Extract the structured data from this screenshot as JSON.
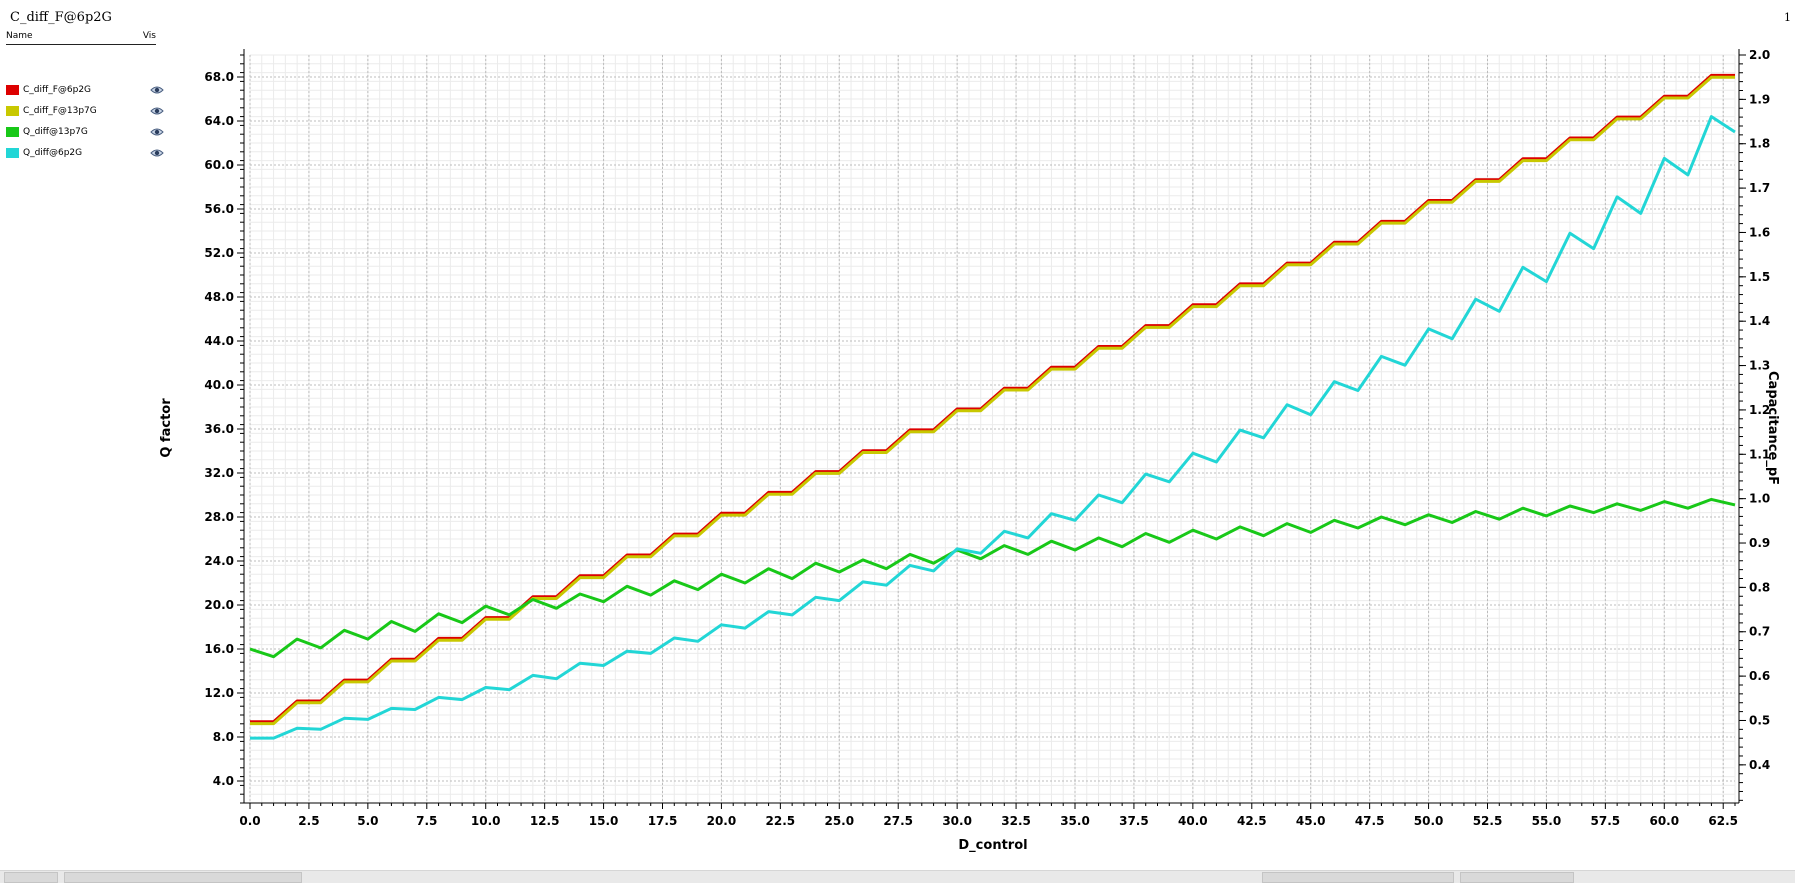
{
  "window": {
    "title": "C_diff_F@6p2G",
    "page_indicator": "1"
  },
  "legend": {
    "header_name": "Name",
    "header_vis": "Vis",
    "items": [
      {
        "label": "C_diff_F@6p2G",
        "color": "#dd0000",
        "icon": "eye-icon"
      },
      {
        "label": "C_diff_F@13p7G",
        "color": "#c8c800",
        "icon": "eye-icon"
      },
      {
        "label": "Q_diff@13p7G",
        "color": "#18c818",
        "icon": "eye-icon"
      },
      {
        "label": "Q_diff@6p2G",
        "color": "#22d6d6",
        "icon": "eye-icon"
      }
    ]
  },
  "chart_data": {
    "type": "line",
    "xlabel": "D_control",
    "ylabel": "Q factor",
    "y2label": "Capacitance_pF",
    "xlim": [
      0,
      63
    ],
    "ylim": [
      2,
      70
    ],
    "y2lim": [
      0.314,
      2.0
    ],
    "grid": true,
    "x_ticks": [
      "0.0",
      "2.5",
      "5.0",
      "7.5",
      "10.0",
      "12.5",
      "15.0",
      "17.5",
      "20.0",
      "22.5",
      "25.0",
      "27.5",
      "30.0",
      "32.5",
      "35.0",
      "37.5",
      "40.0",
      "42.5",
      "45.0",
      "47.5",
      "50.0",
      "52.5",
      "55.0",
      "57.5",
      "60.0",
      "62.5"
    ],
    "y_ticks": [
      "4.0",
      "8.0",
      "12.0",
      "16.0",
      "20.0",
      "24.0",
      "28.0",
      "32.0",
      "36.0",
      "40.0",
      "44.0",
      "48.0",
      "52.0",
      "56.0",
      "60.0",
      "64.0",
      "68.0"
    ],
    "y2_ticks": [
      "0.4",
      "0.5",
      "0.6",
      "0.7",
      "0.8",
      "0.9",
      "1.0",
      "1.1",
      "1.2",
      "1.3",
      "1.4",
      "1.5",
      "1.6",
      "1.7",
      "1.8",
      "1.9",
      "2.0"
    ],
    "series": [
      {
        "name": "C_diff_F@6p2G",
        "axis": "right",
        "color": "#dd0000",
        "x": [
          0,
          1,
          2,
          3,
          4,
          5,
          6,
          7,
          8,
          9,
          10,
          11,
          12,
          13,
          14,
          15,
          16,
          17,
          18,
          19,
          20,
          21,
          22,
          23,
          24,
          25,
          26,
          27,
          28,
          29,
          30,
          31,
          32,
          33,
          34,
          35,
          36,
          37,
          38,
          39,
          40,
          41,
          42,
          43,
          44,
          45,
          46,
          47,
          48,
          49,
          50,
          51,
          52,
          53,
          54,
          55,
          56,
          57,
          58,
          59,
          60,
          61,
          62,
          63
        ],
        "values": [
          0.497,
          0.497,
          0.544,
          0.544,
          0.591,
          0.591,
          0.638,
          0.638,
          0.685,
          0.685,
          0.732,
          0.732,
          0.779,
          0.779,
          0.826,
          0.826,
          0.873,
          0.873,
          0.92,
          0.92,
          0.967,
          0.967,
          1.014,
          1.014,
          1.061,
          1.061,
          1.108,
          1.108,
          1.155,
          1.155,
          1.202,
          1.202,
          1.249,
          1.249,
          1.296,
          1.296,
          1.343,
          1.343,
          1.39,
          1.39,
          1.437,
          1.437,
          1.484,
          1.484,
          1.531,
          1.531,
          1.578,
          1.578,
          1.625,
          1.625,
          1.672,
          1.672,
          1.719,
          1.719,
          1.766,
          1.766,
          1.813,
          1.813,
          1.86,
          1.86,
          1.907,
          1.907,
          1.954,
          1.954
        ]
      },
      {
        "name": "C_diff_F@13p7G",
        "axis": "right",
        "color": "#c8c800",
        "x": [
          0,
          1,
          2,
          3,
          4,
          5,
          6,
          7,
          8,
          9,
          10,
          11,
          12,
          13,
          14,
          15,
          16,
          17,
          18,
          19,
          20,
          21,
          22,
          23,
          24,
          25,
          26,
          27,
          28,
          29,
          30,
          31,
          32,
          33,
          34,
          35,
          36,
          37,
          38,
          39,
          40,
          41,
          42,
          43,
          44,
          45,
          46,
          47,
          48,
          49,
          50,
          51,
          52,
          53,
          54,
          55,
          56,
          57,
          58,
          59,
          60,
          61,
          62,
          63
        ],
        "values": [
          0.493,
          0.493,
          0.54,
          0.54,
          0.587,
          0.587,
          0.634,
          0.634,
          0.681,
          0.681,
          0.728,
          0.728,
          0.775,
          0.775,
          0.822,
          0.822,
          0.869,
          0.869,
          0.916,
          0.916,
          0.963,
          0.963,
          1.01,
          1.01,
          1.057,
          1.057,
          1.104,
          1.104,
          1.151,
          1.151,
          1.198,
          1.198,
          1.245,
          1.245,
          1.292,
          1.292,
          1.339,
          1.339,
          1.386,
          1.386,
          1.433,
          1.433,
          1.48,
          1.48,
          1.527,
          1.527,
          1.574,
          1.574,
          1.621,
          1.621,
          1.668,
          1.668,
          1.715,
          1.715,
          1.762,
          1.762,
          1.809,
          1.809,
          1.856,
          1.856,
          1.903,
          1.903,
          1.95,
          1.95
        ]
      },
      {
        "name": "Q_diff@13p7G",
        "axis": "left",
        "color": "#18c818",
        "x": [
          0,
          1,
          2,
          3,
          4,
          5,
          6,
          7,
          8,
          9,
          10,
          11,
          12,
          13,
          14,
          15,
          16,
          17,
          18,
          19,
          20,
          21,
          22,
          23,
          24,
          25,
          26,
          27,
          28,
          29,
          30,
          31,
          32,
          33,
          34,
          35,
          36,
          37,
          38,
          39,
          40,
          41,
          42,
          43,
          44,
          45,
          46,
          47,
          48,
          49,
          50,
          51,
          52,
          53,
          54,
          55,
          56,
          57,
          58,
          59,
          60,
          61,
          62,
          63
        ],
        "values": [
          16.0,
          15.3,
          16.9,
          16.1,
          17.7,
          16.9,
          18.5,
          17.6,
          19.2,
          18.4,
          19.9,
          19.1,
          20.5,
          19.7,
          21.0,
          20.3,
          21.7,
          20.9,
          22.2,
          21.4,
          22.8,
          22.0,
          23.3,
          22.4,
          23.8,
          23.0,
          24.1,
          23.3,
          24.6,
          23.8,
          25.0,
          24.2,
          25.4,
          24.6,
          25.8,
          25.0,
          26.1,
          25.3,
          26.5,
          25.7,
          26.8,
          26.0,
          27.1,
          26.3,
          27.4,
          26.6,
          27.7,
          27.0,
          28.0,
          27.3,
          28.2,
          27.5,
          28.5,
          27.8,
          28.8,
          28.1,
          29.0,
          28.4,
          29.2,
          28.6,
          29.4,
          28.8,
          29.6,
          29.1
        ]
      },
      {
        "name": "Q_diff@6p2G",
        "axis": "left",
        "color": "#22d6d6",
        "x": [
          0,
          1,
          2,
          3,
          4,
          5,
          6,
          7,
          8,
          9,
          10,
          11,
          12,
          13,
          14,
          15,
          16,
          17,
          18,
          19,
          20,
          21,
          22,
          23,
          24,
          25,
          26,
          27,
          28,
          29,
          30,
          31,
          32,
          33,
          34,
          35,
          36,
          37,
          38,
          39,
          40,
          41,
          42,
          43,
          44,
          45,
          46,
          47,
          48,
          49,
          50,
          51,
          52,
          53,
          54,
          55,
          56,
          57,
          58,
          59,
          60,
          61,
          62,
          63
        ],
        "values": [
          7.9,
          7.9,
          8.8,
          8.7,
          9.7,
          9.6,
          10.6,
          10.5,
          11.6,
          11.4,
          12.5,
          12.3,
          13.6,
          13.3,
          14.7,
          14.5,
          15.8,
          15.6,
          17.0,
          16.7,
          18.2,
          17.9,
          19.4,
          19.1,
          20.7,
          20.4,
          22.1,
          21.8,
          23.6,
          23.1,
          25.1,
          24.7,
          26.7,
          26.1,
          28.3,
          27.7,
          30.0,
          29.3,
          31.9,
          31.2,
          33.8,
          33.0,
          35.9,
          35.2,
          38.2,
          37.3,
          40.3,
          39.5,
          42.6,
          41.8,
          45.1,
          44.2,
          47.8,
          46.7,
          50.7,
          49.4,
          53.8,
          52.4,
          57.1,
          55.6,
          60.6,
          59.1,
          64.4,
          63.0
        ]
      }
    ]
  }
}
